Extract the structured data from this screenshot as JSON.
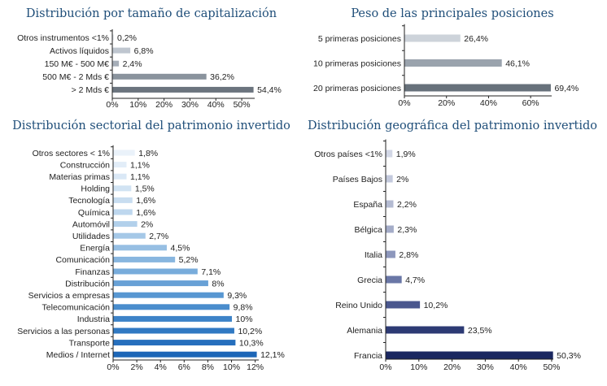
{
  "chart_data": [
    {
      "type": "bar",
      "orientation": "horizontal",
      "title": "Distribución por tamaño de capitalización",
      "categories": [
        "Otros instrumentos <1%",
        "Activos líquidos",
        "150 M€ - 500 M€",
        "500 M€ - 2 Mds €",
        "> 2 Mds €"
      ],
      "values": [
        0.2,
        6.8,
        2.4,
        36.2,
        54.4
      ],
      "value_labels": [
        "0,2%",
        "6,8%",
        "2,4%",
        "36,2%",
        "54,4%"
      ],
      "xlim": [
        0,
        55
      ],
      "xticks": [
        0,
        10,
        20,
        30,
        40,
        50
      ],
      "xtick_labels": [
        "0%",
        "10%",
        "20%",
        "30%",
        "40%",
        "50%"
      ],
      "colors": [
        "#d6dbe1",
        "#bfc6cf",
        "#a6aeb8",
        "#8a939d",
        "#6b747e"
      ],
      "grid": false
    },
    {
      "type": "bar",
      "orientation": "horizontal",
      "title": "Peso de las principales posiciones",
      "categories": [
        "5 primeras posiciones",
        "10 primeras posiciones",
        "20 primeras posiciones"
      ],
      "values": [
        26.4,
        46.1,
        69.4
      ],
      "value_labels": [
        "26,4%",
        "46,1%",
        "69,4%"
      ],
      "xlim": [
        0,
        70
      ],
      "xticks": [
        0,
        20,
        40,
        60
      ],
      "xtick_labels": [
        "0%",
        "20%",
        "40%",
        "60%"
      ],
      "colors": [
        "#cdd3da",
        "#9aa3ad",
        "#67717b"
      ],
      "grid": false
    },
    {
      "type": "bar",
      "orientation": "horizontal",
      "title": "Distribución sectorial del patrimonio invertido",
      "categories": [
        "Otros sectores < 1%",
        "Construcción",
        "Materias primas",
        "Holding",
        "Tecnología",
        "Química",
        "Automóvil",
        "Utilidades",
        "Energía",
        "Comunicación",
        "Finanzas",
        "Distribución",
        "Servicios a empresas",
        "Telecomunicación",
        "Industria",
        "Servicios a las personas",
        "Transporte",
        "Medios / Internet"
      ],
      "values": [
        1.8,
        1.1,
        1.1,
        1.5,
        1.6,
        1.6,
        2.0,
        2.7,
        4.5,
        5.2,
        7.1,
        8.0,
        9.3,
        9.8,
        10.0,
        10.2,
        10.3,
        12.1
      ],
      "value_labels": [
        "1,8%",
        "1,1%",
        "1,1%",
        "1,5%",
        "1,6%",
        "1,6%",
        "2%",
        "2,7%",
        "4,5%",
        "5,2%",
        "7,1%",
        "8%",
        "9,3%",
        "9,8%",
        "10%",
        "10,2%",
        "10,3%",
        "12,1%"
      ],
      "xlim": [
        0,
        12.3
      ],
      "xticks": [
        0,
        2,
        4,
        6,
        8,
        10,
        12
      ],
      "xtick_labels": [
        "0%",
        "2%",
        "4%",
        "6%",
        "8%",
        "10%",
        "12%"
      ],
      "colors": [
        "#eaf2fa",
        "#e2edf8",
        "#dae8f6",
        "#d1e3f3",
        "#c8ddf0",
        "#bed7ee",
        "#b2d0eb",
        "#a5c8e7",
        "#97bfe3",
        "#88b6df",
        "#78acdb",
        "#68a1d6",
        "#5897d2",
        "#4a8dcd",
        "#3d83c8",
        "#3079c3",
        "#266fbd",
        "#1d66b7"
      ],
      "grid": false
    },
    {
      "type": "bar",
      "orientation": "horizontal",
      "title": "Distribución geográfica del patrimonio invertido",
      "categories": [
        "Otros países <1%",
        "Países Bajos",
        "España",
        "Bélgica",
        "Italia",
        "Grecia",
        "Reino Unido",
        "Alemania",
        "Francia"
      ],
      "values": [
        1.9,
        2.0,
        2.2,
        2.3,
        2.8,
        4.7,
        10.2,
        23.5,
        50.3
      ],
      "value_labels": [
        "1,9%",
        "2%",
        "2,2%",
        "2,3%",
        "2,8%",
        "4,7%",
        "10,2%",
        "23,5%",
        "50,3%"
      ],
      "xlim": [
        0,
        50.5
      ],
      "xticks": [
        0,
        10,
        20,
        30,
        40,
        50
      ],
      "xtick_labels": [
        "0%",
        "10%",
        "20%",
        "30%",
        "40%",
        "50%"
      ],
      "colors": [
        "#d2d7e6",
        "#c3c9dc",
        "#b4bbd2",
        "#a4acc8",
        "#8d97bc",
        "#6a77a6",
        "#4a578e",
        "#2d3a74",
        "#1a2760"
      ],
      "grid": false
    }
  ]
}
